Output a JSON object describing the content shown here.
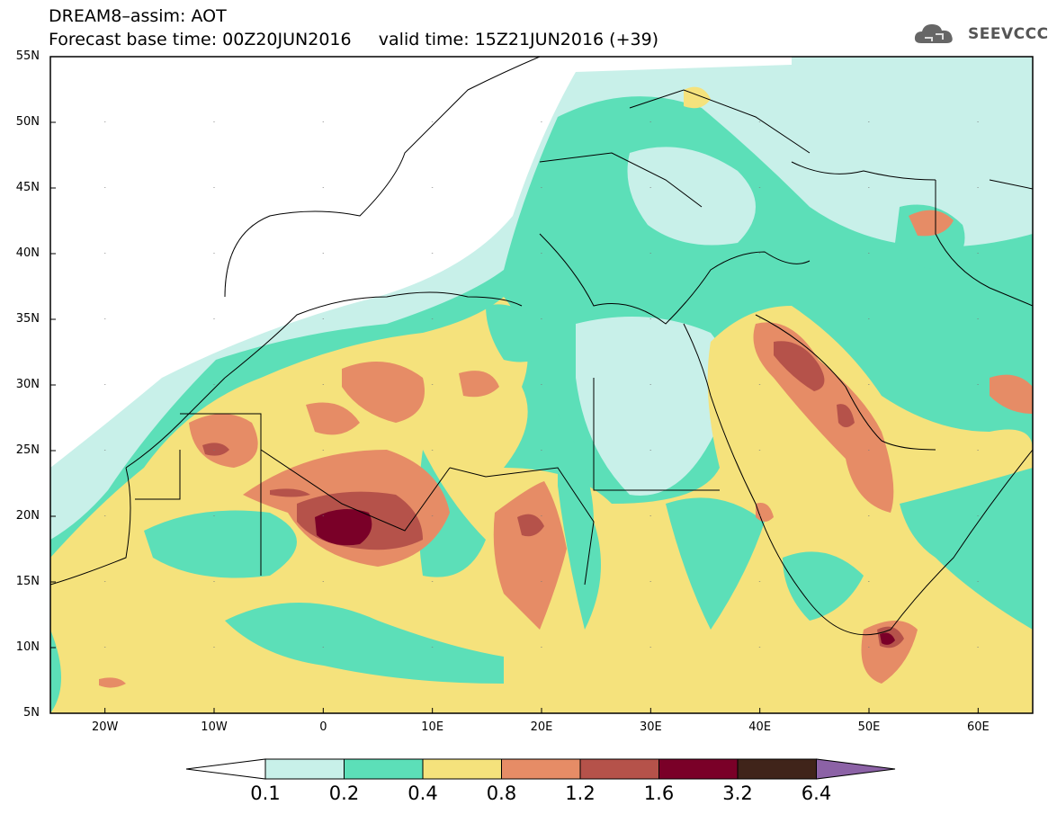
{
  "header": {
    "line1": "DREAM8–assim: AOT",
    "line2": "Forecast base time: 00Z20JUN2016     valid time: 15Z21JUN2016 (+39)",
    "logo_text": "SEEVCCC"
  },
  "map": {
    "lon_range": [
      -25,
      65
    ],
    "lat_range": [
      5,
      55
    ],
    "lat_labels": [
      "55N",
      "50N",
      "45N",
      "40N",
      "35N",
      "30N",
      "25N",
      "20N",
      "15N",
      "10N",
      "5N"
    ],
    "lon_labels": [
      "20W",
      "10W",
      "0",
      "10E",
      "20E",
      "30E",
      "40E",
      "50E",
      "60E"
    ]
  },
  "colorbar": {
    "labels": [
      "0.1",
      "0.2",
      "0.4",
      "0.8",
      "1.2",
      "1.6",
      "3.2",
      "6.4"
    ],
    "colors": [
      "#ffffff",
      "#c8f0e9",
      "#5cdfb8",
      "#f5e27c",
      "#e68c66",
      "#b5524a",
      "#7a0028",
      "#40241a",
      "#8c62a6"
    ]
  }
}
